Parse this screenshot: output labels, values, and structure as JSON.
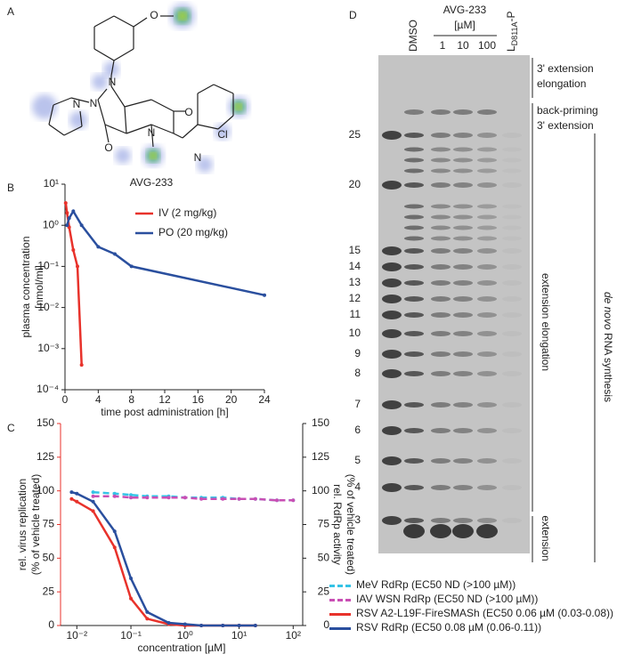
{
  "panel_labels": [
    "A",
    "B",
    "C",
    "D"
  ],
  "structure": {
    "name": "AVG-233",
    "atoms": [
      "O",
      "N",
      "N",
      "N",
      "O",
      "N",
      "O",
      "N",
      "Cl"
    ]
  },
  "chart_data": [
    {
      "type": "line",
      "ylog": true,
      "xlim": [
        0,
        24
      ],
      "xticks": [
        0,
        4,
        8,
        12,
        16,
        20,
        24
      ],
      "ylim": [
        0.0001,
        10
      ],
      "yticks": [
        {
          "value": 0.0001,
          "label": "10⁻⁴"
        },
        {
          "value": 0.001,
          "label": "10⁻³"
        },
        {
          "value": 0.01,
          "label": "10⁻²"
        },
        {
          "value": 0.1,
          "label": "10⁻¹"
        },
        {
          "value": 1,
          "label": "10⁰"
        },
        {
          "value": 10,
          "label": "10¹"
        }
      ],
      "xlabel": "time post administration [h]",
      "ylabel": [
        "plasma concentration",
        "[nmol/ml]"
      ],
      "series": [
        {
          "name": "IV (2 mg/kg)",
          "color": "#e8322b",
          "x": [
            0.083,
            0.25,
            0.5,
            1,
            1.5,
            2
          ],
          "values": [
            3.5,
            2,
            0.9,
            0.25,
            0.1,
            0.0004
          ]
        },
        {
          "name": "PO (20 mg/kg)",
          "color": "#2a4f9e",
          "x": [
            0.25,
            0.5,
            1,
            2,
            4,
            6,
            8,
            24
          ],
          "values": [
            1,
            1.5,
            2.2,
            1,
            0.3,
            0.2,
            0.1,
            0.02
          ]
        }
      ]
    },
    {
      "type": "line",
      "xlog": true,
      "xlim": [
        0.005,
        150
      ],
      "xticks": [
        {
          "value": 0.01,
          "label": "10⁻²"
        },
        {
          "value": 0.1,
          "label": "10⁻¹"
        },
        {
          "value": 1,
          "label": "10⁰"
        },
        {
          "value": 10,
          "label": "10¹"
        },
        {
          "value": 100,
          "label": "10²"
        }
      ],
      "ylim": [
        0,
        150
      ],
      "yticks": [
        0,
        25,
        50,
        75,
        100,
        125,
        150
      ],
      "y2lim": [
        0,
        150
      ],
      "y2ticks": [
        0,
        25,
        50,
        75,
        100,
        125,
        150
      ],
      "xlabel": "concentration [µM]",
      "ylabel": [
        "rel. virus replication",
        "(% of vehicle treated)"
      ],
      "y2label": [
        "rel. RdRp activity",
        "(% of vehicle treated)"
      ],
      "ylabel_color": "#e8322b",
      "series": [
        {
          "name": "MeV RdRp (EC50 ND (>100 µM))",
          "color": "#35c3e6",
          "dash": true,
          "axis": "y2",
          "x": [
            0.02,
            0.05,
            0.1,
            0.2,
            0.5,
            1,
            2,
            5,
            10,
            20,
            50,
            100
          ],
          "values": [
            99,
            98,
            97,
            96,
            96,
            95,
            95,
            95,
            94,
            94,
            93,
            93
          ]
        },
        {
          "name": "IAV WSN RdRp (EC50 ND (>100 µM))",
          "color": "#c94fb4",
          "dash": true,
          "axis": "y2",
          "x": [
            0.02,
            0.05,
            0.1,
            0.2,
            0.5,
            1,
            2,
            5,
            10,
            20,
            50,
            100
          ],
          "values": [
            96,
            96,
            95,
            95,
            95,
            95,
            94,
            94,
            94,
            94,
            93,
            93
          ]
        },
        {
          "name": "RSV A2-L19F-FireSMASh (EC50 0.06 µM (0.03-0.08))",
          "color": "#e8322b",
          "x": [
            0.008,
            0.01,
            0.02,
            0.05,
            0.1,
            0.2,
            0.5,
            1,
            2,
            5,
            10,
            20
          ],
          "values": [
            94,
            92,
            85,
            58,
            20,
            5,
            1,
            0,
            0,
            0,
            0,
            0
          ]
        },
        {
          "name": "RSV RdRp (EC50 0.08 µM (0.06-0.11))",
          "color": "#2a4f9e",
          "axis": "y2",
          "x": [
            0.008,
            0.01,
            0.02,
            0.05,
            0.1,
            0.2,
            0.5,
            1,
            2,
            5,
            10,
            20
          ],
          "values": [
            99,
            98,
            92,
            70,
            35,
            10,
            2,
            1,
            0,
            0,
            0,
            0
          ]
        }
      ]
    }
  ],
  "gel": {
    "lanes": [
      "DMSO"
    ],
    "treatment": "AVG-233",
    "unit": "[µM]",
    "concentrations": [
      "1",
      "10",
      "100"
    ],
    "control": {
      "base": "L",
      "sub": "D811A",
      "suffix": "-P"
    },
    "markers": [
      25,
      20,
      15,
      14,
      13,
      12,
      11,
      10,
      9,
      8,
      7,
      6,
      5,
      4,
      3
    ],
    "annotations": {
      "top": [
        "3' extension",
        "elongation",
        "back-priming",
        "3' extension"
      ],
      "middle": "extension elongation",
      "bottom": "extension",
      "side": {
        "italic": "de novo",
        "text": " RNA synthesis"
      }
    }
  }
}
